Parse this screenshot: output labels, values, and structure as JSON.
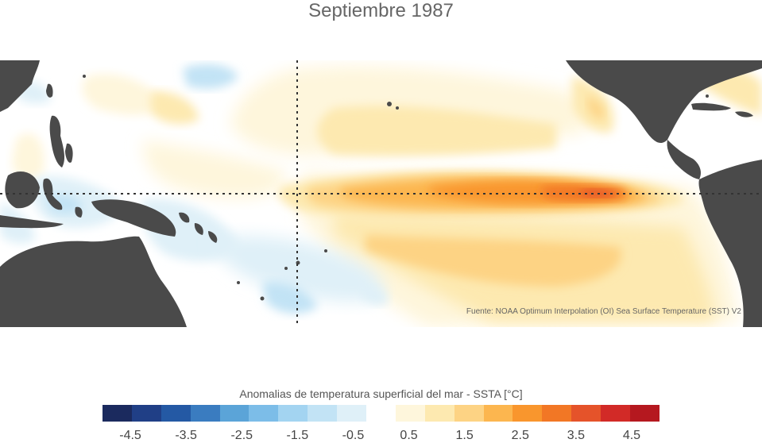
{
  "title": "Septiembre 1987",
  "source": "Fuente: NOAA Optimum Interpolation (OI) Sea Surface Temperature (SST) V2",
  "colorbar": {
    "title": "Anomalias de temperatura superficial del mar - SSTA  [°C]",
    "colors": [
      "#1b2a5e",
      "#203f86",
      "#2459a4",
      "#3a7cc0",
      "#5ba4d8",
      "#7cbde8",
      "#a3d4f1",
      "#c2e3f5",
      "#dff0f8",
      "#ffffff",
      "#fef6dc",
      "#fde9b0",
      "#fdd384",
      "#fcb64f",
      "#f9962d",
      "#f27725",
      "#e5532a",
      "#d22a27",
      "#b5181f"
    ],
    "tick_labels": [
      "-4.5",
      "-3.5",
      "-2.5",
      "-1.5",
      "-0.5",
      "0.5",
      "1.5",
      "2.5",
      "3.5",
      "4.5"
    ],
    "tick_values": [
      -4.5,
      -3.5,
      -2.5,
      -1.5,
      -0.5,
      0.5,
      1.5,
      2.5,
      3.5,
      4.5
    ],
    "range": [
      -5,
      5
    ]
  },
  "map": {
    "region": "Tropical Pacific",
    "reference_lines": [
      "equator",
      "date line (180°)"
    ],
    "land_color": "#4a4a4a",
    "features": [
      {
        "name": "warm-anomaly-equatorial-pacific",
        "max_anomaly": 3.5
      }
    ]
  }
}
